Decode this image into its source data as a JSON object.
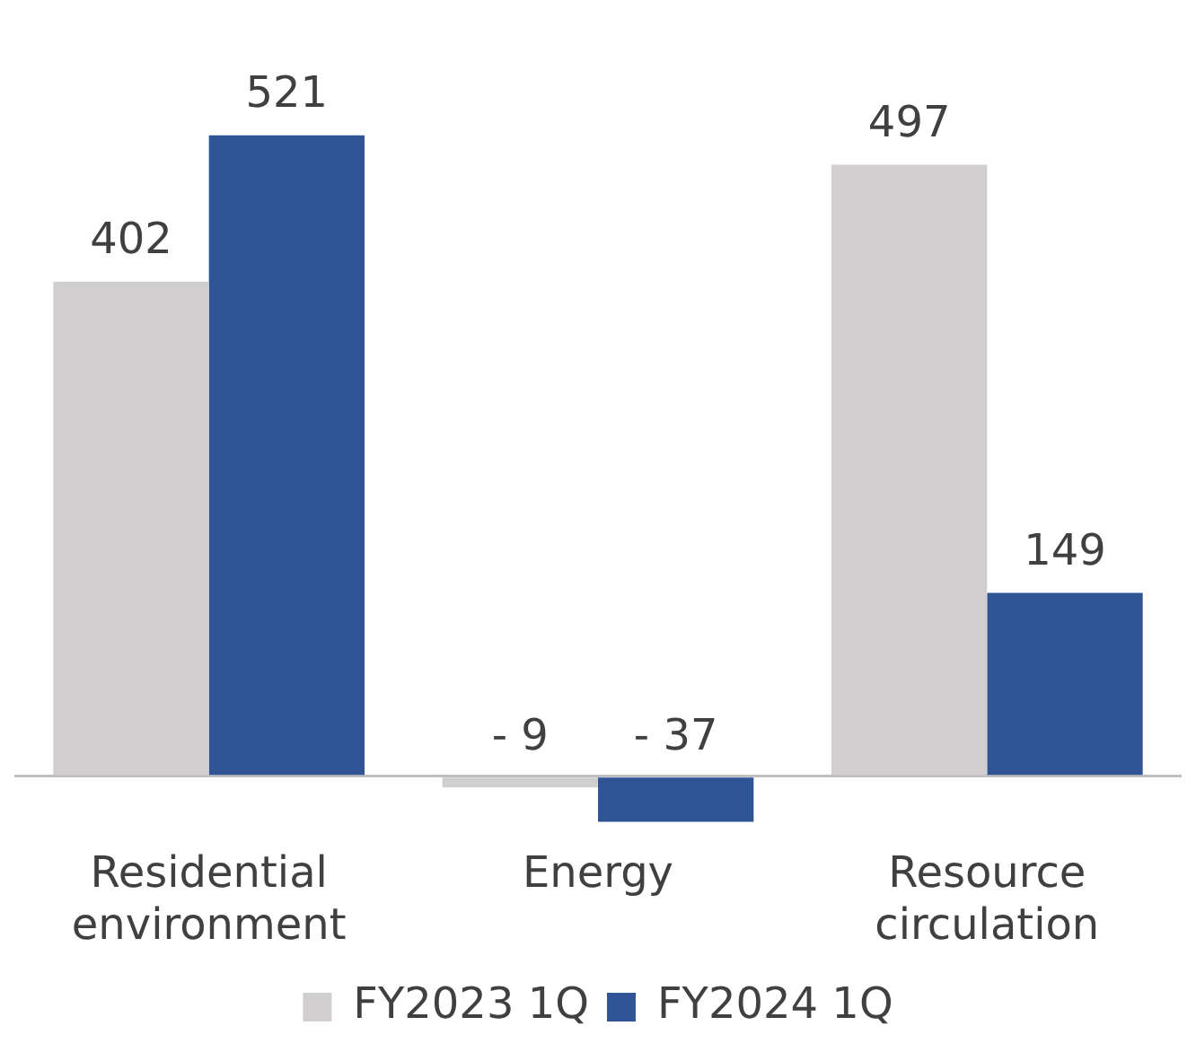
{
  "chart_data": {
    "type": "bar",
    "categories": [
      "Residential environment",
      "Energy",
      "Resource circulation"
    ],
    "series": [
      {
        "name": "FY2023 1Q",
        "color": "#d0cece",
        "values": [
          402,
          -9,
          497
        ],
        "value_labels": [
          "402",
          "- 9",
          "497"
        ]
      },
      {
        "name": "FY2024 1Q",
        "color": "#2f5597",
        "values": [
          521,
          -37,
          149
        ],
        "value_labels": [
          "521",
          "- 37",
          "149"
        ]
      }
    ],
    "legend": "bottom",
    "grid": false
  }
}
